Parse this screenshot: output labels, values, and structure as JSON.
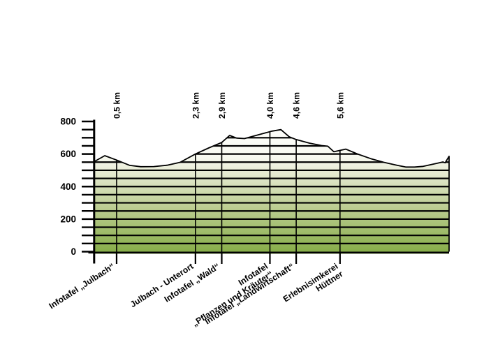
{
  "page": {
    "background": "#ffffff"
  },
  "chart_data": {
    "type": "area",
    "subtype": "elevation-profile",
    "title": "",
    "xlabel": "",
    "ylabel": "",
    "unit_x": "km",
    "unit_y": "m",
    "xlim": [
      0,
      8.09
    ],
    "ylim": [
      0,
      800
    ],
    "y_axis_labels": [
      "800",
      "600",
      "400",
      "200",
      "0"
    ],
    "y_axis_label_values": [
      800,
      600,
      400,
      200,
      0
    ],
    "y_minor_step_m": 50,
    "grid": "horizontal lines every 50 m inside profile, vertical lines at waypoints",
    "legend": "none",
    "profile_km_m": [
      [
        0.0,
        555
      ],
      [
        0.23,
        590
      ],
      [
        0.5,
        563
      ],
      [
        0.8,
        530
      ],
      [
        1.05,
        522
      ],
      [
        1.35,
        523
      ],
      [
        1.65,
        531
      ],
      [
        1.95,
        549
      ],
      [
        2.3,
        600
      ],
      [
        2.6,
        637
      ],
      [
        2.9,
        671
      ],
      [
        3.08,
        714
      ],
      [
        3.24,
        698
      ],
      [
        3.42,
        695
      ],
      [
        4.05,
        741
      ],
      [
        4.25,
        750
      ],
      [
        4.44,
        706
      ],
      [
        4.6,
        689
      ],
      [
        4.9,
        667
      ],
      [
        5.18,
        652
      ],
      [
        5.32,
        648
      ],
      [
        5.46,
        614
      ],
      [
        5.73,
        630
      ],
      [
        6.0,
        600
      ],
      [
        6.3,
        572
      ],
      [
        6.6,
        549
      ],
      [
        6.9,
        531
      ],
      [
        7.1,
        520
      ],
      [
        7.3,
        520
      ],
      [
        7.5,
        524
      ],
      [
        7.8,
        542
      ],
      [
        7.95,
        551
      ],
      [
        8.0,
        546
      ],
      [
        8.09,
        586
      ]
    ],
    "waypoints": [
      {
        "km": 0.5,
        "km_label": "0,5 km",
        "name_lines": [
          "Infotafel „Julbach“"
        ]
      },
      {
        "km": 2.3,
        "km_label": "2,3 km",
        "name_lines": [
          "Julbach - Unterort"
        ]
      },
      {
        "km": 2.9,
        "km_label": "2,9 km",
        "name_lines": [
          "Infotafel „Wald“"
        ]
      },
      {
        "km": 4.0,
        "km_label": "4,0 km",
        "name_lines": [
          "Infotafel",
          "„Pflanzen und Kräuter“"
        ]
      },
      {
        "km": 4.6,
        "km_label": "4,6 km",
        "name_lines": [
          "Infotafel „Landwirtschaft“"
        ]
      },
      {
        "km": 5.6,
        "km_label": "5,6 km",
        "name_lines": [
          "Erlebnisimkerei",
          "Hüttner"
        ]
      }
    ],
    "colors": {
      "line": "#000000",
      "text": "#000000",
      "gradient_top": "#ffffff",
      "gradient_upper": "#f7f9ef",
      "gradient_high": "#ebeeda",
      "gradient_mid": "#bccd92",
      "gradient_bottom": "#88ae4a",
      "background": "#ffffff"
    }
  }
}
